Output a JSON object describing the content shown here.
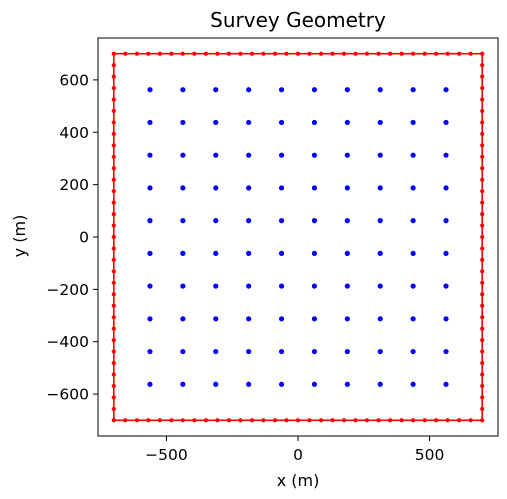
{
  "chart_data": {
    "type": "scatter",
    "title": "Survey Geometry",
    "xlabel": "x (m)",
    "ylabel": "y (m)",
    "xlim": [
      -760,
      760
    ],
    "ylim": [
      -760,
      760
    ],
    "grid": false,
    "aspect": "equal",
    "x_ticks": [
      -500,
      0,
      500
    ],
    "x_tick_labels": [
      "−500",
      "0",
      "500"
    ],
    "y_ticks": [
      600,
      400,
      200,
      0,
      -200,
      -400,
      -600
    ],
    "y_tick_labels": [
      "600",
      "400",
      "200",
      "0",
      "−200",
      "−400",
      "−600"
    ],
    "series": [
      {
        "color": "#0000ff",
        "marker": "dot",
        "grid_points": {
          "x": [
            -562.5,
            -437.5,
            -312.5,
            -187.5,
            -62.5,
            62.5,
            187.5,
            312.5,
            437.5,
            562.5
          ],
          "y": [
            562.5,
            437.5,
            312.5,
            187.5,
            62.5,
            -62.5,
            -187.5,
            -312.5,
            -437.5,
            -562.5
          ]
        }
      },
      {
        "color": "#ff0000",
        "marker": "dot",
        "line": true,
        "rectangle": {
          "xmin": -700,
          "xmax": 700,
          "ymin": -700,
          "ymax": 700
        },
        "points_per_side": 33
      }
    ]
  }
}
